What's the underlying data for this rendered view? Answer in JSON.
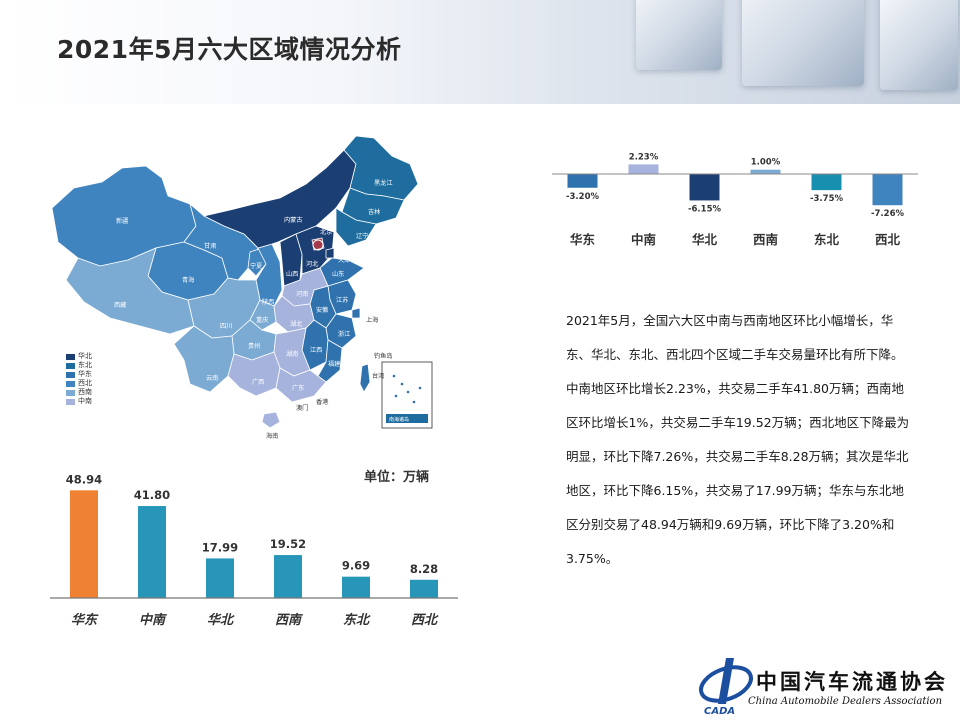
{
  "title": "2021年5月六大区域情况分析",
  "map": {
    "legend": [
      {
        "label": "华北",
        "color": "#1b3f73"
      },
      {
        "label": "东北",
        "color": "#1f6d9e"
      },
      {
        "label": "华东",
        "color": "#2f72ae"
      },
      {
        "label": "西北",
        "color": "#3f83bf"
      },
      {
        "label": "西南",
        "color": "#7baad3"
      },
      {
        "label": "中南",
        "color": "#a6b3dc"
      }
    ],
    "labels": [
      "新疆",
      "西藏",
      "青海",
      "甘肃",
      "内蒙古",
      "黑龙江",
      "吉林",
      "辽宁",
      "北京",
      "天津",
      "河北",
      "山西",
      "山东",
      "宁夏",
      "陕西",
      "河南",
      "江苏",
      "上海",
      "安徽",
      "湖北",
      "四川",
      "重庆",
      "浙江",
      "湖南",
      "江西",
      "贵州",
      "福建",
      "云南",
      "广西",
      "广东",
      "台湾",
      "香港",
      "澳门",
      "海南",
      "钓鱼岛",
      "南海诸岛"
    ]
  },
  "unit": "单位：万辆",
  "chart_data": [
    {
      "type": "bar",
      "categories": [
        "华东",
        "中南",
        "华北",
        "西南",
        "东北",
        "西北"
      ],
      "values": [
        48.94,
        41.8,
        17.99,
        19.52,
        9.69,
        8.28
      ],
      "value_labels": [
        "48.94",
        "41.80",
        "17.99",
        "19.52",
        "9.69",
        "8.28"
      ],
      "colors": [
        "#ef8232",
        "#2796b9",
        "#2796b9",
        "#2796b9",
        "#2796b9",
        "#2796b9"
      ],
      "ylim": [
        0,
        50
      ],
      "grid": false
    },
    {
      "type": "bar",
      "categories": [
        "华东",
        "中南",
        "华北",
        "西南",
        "东北",
        "西北"
      ],
      "values": [
        -3.2,
        2.23,
        -6.15,
        1.0,
        -3.75,
        -7.26
      ],
      "value_labels": [
        "-3.20%",
        "2.23%",
        "-6.15%",
        "1.00%",
        "-3.75%",
        "-7.26%"
      ],
      "colors": [
        "#2f72ae",
        "#a6b3dc",
        "#1b3f73",
        "#7baad3",
        "#1790b0",
        "#3f83bf"
      ],
      "ylim": [
        -8,
        3
      ],
      "grid": false
    }
  ],
  "commentary": [
    "2021年5月，全国六大区中南与西南地区环比小幅增长，华东、华北、东北、西北四个区域二手车交易量环比有所下降。",
    "中南地区环比增长2.23%，共交易二手车41.80万辆；西南地区环比增长1%，共交易二手车19.52万辆；西北地区下降最为明显，环比下降7.26%，共交易二手车8.28万辆；其次是华北地区，环比下降6.15%，共交易了17.99万辆；华东与东北地区分别交易了48.94万辆和9.69万辆，环比下降了3.20%和3.75%。"
  ],
  "logo": {
    "abbr": "CADA",
    "name_cn": "中国汽车流通协会",
    "name_en": "China Automobile Dealers Association"
  }
}
